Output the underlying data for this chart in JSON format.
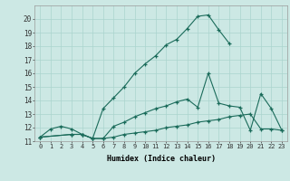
{
  "xlabel": "Humidex (Indice chaleur)",
  "ylabel": "",
  "bg_color": "#cce8e4",
  "line_color": "#1a6b5a",
  "grid_color": "#aad4ce",
  "xlim_min": -0.5,
  "xlim_max": 23.5,
  "ylim_min": 11,
  "ylim_max": 21,
  "xtick_vals": [
    0,
    1,
    2,
    3,
    4,
    5,
    6,
    7,
    8,
    9,
    10,
    11,
    12,
    13,
    14,
    15,
    16,
    17,
    18,
    19,
    20,
    21,
    22,
    23
  ],
  "xtick_labels": [
    "0",
    "1",
    "2",
    "3",
    "4",
    "5",
    "6",
    "7",
    "8",
    "9",
    "10",
    "11",
    "12",
    "13",
    "14",
    "15",
    "16",
    "17",
    "18",
    "19",
    "20",
    "21",
    "22",
    "23"
  ],
  "ytick_vals": [
    11,
    12,
    13,
    14,
    15,
    16,
    17,
    18,
    19,
    20
  ],
  "ytick_labels": [
    "11",
    "12",
    "13",
    "14",
    "15",
    "16",
    "17",
    "18",
    "19",
    "20"
  ],
  "line1_x": [
    0,
    1,
    2,
    3,
    4,
    5,
    6,
    7,
    8,
    9,
    10,
    11,
    12,
    13,
    14,
    15,
    16,
    17,
    18
  ],
  "line1_y": [
    11.3,
    11.9,
    12.1,
    11.9,
    11.5,
    11.2,
    13.4,
    14.2,
    15.0,
    16.0,
    16.7,
    17.3,
    18.1,
    18.5,
    19.3,
    20.2,
    20.3,
    19.2,
    18.2
  ],
  "line2_x": [
    0,
    3,
    4,
    5,
    6,
    7,
    8,
    9,
    10,
    11,
    12,
    13,
    14,
    15,
    16,
    17,
    18,
    19,
    20,
    21,
    22,
    23
  ],
  "line2_y": [
    11.3,
    11.5,
    11.5,
    11.2,
    11.2,
    12.1,
    12.4,
    12.8,
    13.1,
    13.4,
    13.6,
    13.9,
    14.1,
    13.5,
    16.0,
    13.8,
    13.6,
    13.5,
    11.8,
    14.5,
    13.4,
    11.8
  ],
  "line3_x": [
    0,
    3,
    4,
    5,
    6,
    7,
    8,
    9,
    10,
    11,
    12,
    13,
    14,
    15,
    16,
    17,
    18,
    19,
    20,
    21,
    22,
    23
  ],
  "line3_y": [
    11.3,
    11.5,
    11.5,
    11.2,
    11.2,
    11.3,
    11.5,
    11.6,
    11.7,
    11.8,
    12.0,
    12.1,
    12.2,
    12.4,
    12.5,
    12.6,
    12.8,
    12.9,
    13.0,
    11.9,
    11.9,
    11.8
  ]
}
